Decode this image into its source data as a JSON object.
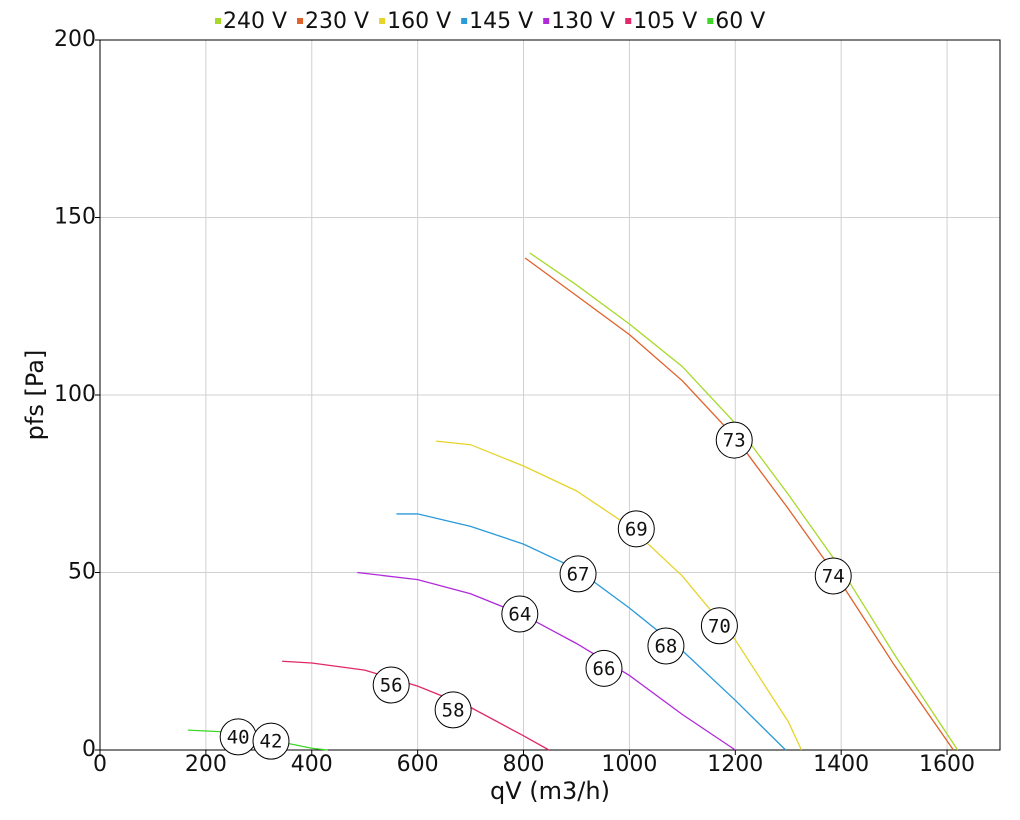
{
  "chart_data": {
    "type": "line",
    "x_label": "qV (m3/h)",
    "y_label": "pfs [Pa]",
    "xlim": [
      0,
      1700
    ],
    "ylim": [
      0,
      200
    ],
    "xticks": [
      0,
      200,
      400,
      600,
      800,
      1000,
      1200,
      1400,
      1600
    ],
    "yticks": [
      0,
      50,
      100,
      150,
      200
    ],
    "grid": true,
    "legend": "top",
    "series": [
      {
        "name": "240 V",
        "color": "#a8d92a",
        "x": [
          812,
          900,
          1000,
          1100,
          1200,
          1300,
          1400,
          1500,
          1620
        ],
        "values": [
          140,
          131,
          120,
          108,
          92,
          72,
          51,
          27,
          0
        ]
      },
      {
        "name": "230 V",
        "color": "#e0612a",
        "x": [
          803,
          900,
          1000,
          1100,
          1200,
          1300,
          1400,
          1500,
          1612
        ],
        "values": [
          138.6,
          128,
          117,
          104,
          88,
          68,
          47,
          24,
          0
        ]
      },
      {
        "name": "160 V",
        "color": "#e6d42a",
        "x": [
          635,
          700,
          800,
          900,
          1000,
          1100,
          1200,
          1300,
          1325
        ],
        "values": [
          87,
          86,
          80,
          73,
          63,
          49,
          31,
          8,
          0
        ]
      },
      {
        "name": "145 V",
        "color": "#2a9ad9",
        "x": [
          560,
          600,
          700,
          800,
          900,
          1000,
          1100,
          1200,
          1295
        ],
        "values": [
          66.5,
          66.5,
          63,
          58,
          51,
          40,
          28,
          14,
          0
        ]
      },
      {
        "name": "130 V",
        "color": "#b02ad9",
        "x": [
          486,
          600,
          700,
          800,
          900,
          1000,
          1100,
          1200
        ],
        "values": [
          50,
          48,
          44,
          38,
          30,
          21,
          10,
          0
        ]
      },
      {
        "name": "105 V",
        "color": "#e0286a",
        "x": [
          344,
          400,
          500,
          600,
          700,
          800,
          848
        ],
        "values": [
          25,
          24.5,
          22.5,
          18,
          12,
          4,
          0
        ]
      },
      {
        "name": "60 V",
        "color": "#3ed62a",
        "x": [
          166,
          250,
          300,
          350,
          400,
          430
        ],
        "values": [
          5.6,
          5,
          3.5,
          2,
          0.5,
          0
        ]
      }
    ],
    "annotations": [
      {
        "x": 1198,
        "y": 87.3,
        "label": "73"
      },
      {
        "x": 1385,
        "y": 49,
        "label": "74"
      },
      {
        "x": 1013,
        "y": 62.3,
        "label": "69"
      },
      {
        "x": 1170,
        "y": 35,
        "label": "70"
      },
      {
        "x": 903,
        "y": 49.6,
        "label": "67"
      },
      {
        "x": 1069,
        "y": 29.3,
        "label": "68"
      },
      {
        "x": 793,
        "y": 38.3,
        "label": "64"
      },
      {
        "x": 952,
        "y": 23,
        "label": "66"
      },
      {
        "x": 550,
        "y": 18.3,
        "label": "56"
      },
      {
        "x": 667,
        "y": 11.3,
        "label": "58"
      },
      {
        "x": 261,
        "y": 3.7,
        "label": "40"
      },
      {
        "x": 323,
        "y": 2.5,
        "label": "42"
      }
    ]
  }
}
